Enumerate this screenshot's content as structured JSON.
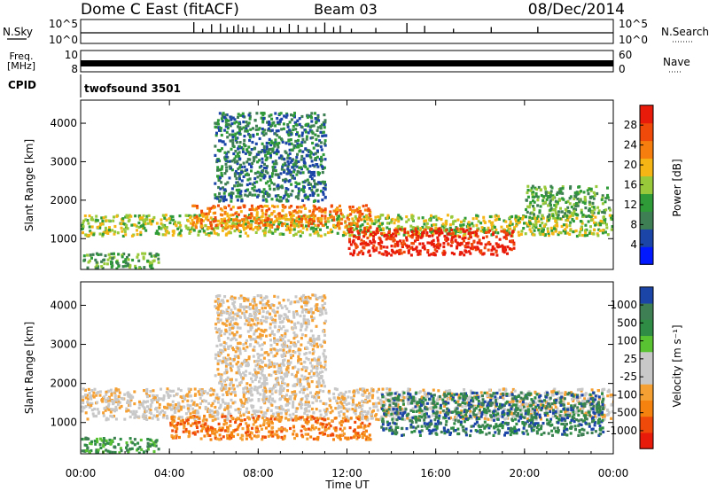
{
  "header": {
    "station": "Dome C East (fitACF)",
    "beam": "Beam 03",
    "date": "08/Dec/2014"
  },
  "nsky": {
    "label": "N.Sky",
    "ticks": [
      "10^5",
      "10^0"
    ],
    "right_label": "N.Search",
    "right_ticks": [
      "10^5",
      "10^0"
    ],
    "spike_times_h": [
      5.1,
      5.5,
      5.9,
      6.3,
      6.6,
      6.9,
      7.1,
      7.3,
      7.5,
      7.8,
      8.4,
      8.7,
      9.0,
      9.4,
      9.8,
      10.2,
      10.6,
      11.0,
      11.4,
      11.7,
      12.2,
      13.3,
      14.7,
      15.5,
      16.8,
      18.5,
      20.6
    ]
  },
  "freq": {
    "label_line1": "Freq.",
    "label_line2": "[MHz]",
    "ticks": [
      "10",
      "8"
    ],
    "right_label": "Nave",
    "right_ticks": [
      "60",
      "0"
    ]
  },
  "cpid": {
    "label": "CPID",
    "value": "twofsound 3501"
  },
  "chart_data": [
    {
      "type": "heatmap",
      "quantity": "Power",
      "ylabel": "Slant Range [km]",
      "ylim": [
        200,
        4600
      ],
      "yticks": [
        "1000",
        "2000",
        "3000",
        "4000"
      ],
      "xlim": [
        0,
        24
      ],
      "colorbar_label": "Power [dB]",
      "colorbar_ticks": [
        "28",
        "24",
        "20",
        "16",
        "12",
        "8",
        "4"
      ],
      "colors": [
        "#0019ff",
        "#1c45a8",
        "#3f7f54",
        "#2e9a38",
        "#98c93a",
        "#f5b615",
        "#f57e0f",
        "#f04a0a",
        "#e81b0b"
      ],
      "bands": [
        {
          "t0": 0.0,
          "t1": 24.0,
          "r0": 1100,
          "r1": 1650,
          "level": 4
        },
        {
          "t0": 0.0,
          "t1": 3.5,
          "r0": 250,
          "r1": 650,
          "level": 3
        },
        {
          "t0": 5.0,
          "t1": 13.0,
          "r0": 1300,
          "r1": 1900,
          "level": 6
        },
        {
          "t0": 12.0,
          "t1": 19.5,
          "r0": 600,
          "r1": 1300,
          "level": 8
        },
        {
          "t0": 20.0,
          "t1": 23.8,
          "r0": 1600,
          "r1": 2400,
          "level": 3
        },
        {
          "t0": 6.0,
          "t1": 11.0,
          "r0": 2000,
          "r1": 4300,
          "level": 2
        }
      ]
    },
    {
      "type": "heatmap",
      "quantity": "Velocity",
      "ylabel": "Slant Range [km]",
      "ylim": [
        200,
        4600
      ],
      "yticks": [
        "1000",
        "2000",
        "3000",
        "4000"
      ],
      "xlim": [
        0,
        24
      ],
      "xticks": [
        "00:00",
        "04:00",
        "08:00",
        "12:00",
        "16:00",
        "20:00",
        "00:00"
      ],
      "xlabel": "Time UT",
      "colorbar_label": "Velocity [m s⁻¹]",
      "colorbar_ticks": [
        "1000",
        "500",
        "100",
        "25",
        "-25",
        "-100",
        "-500",
        "-1000"
      ],
      "colors": [
        "#e81b0b",
        "#f04a0a",
        "#f5820f",
        "#f5a032",
        "#c8c8c8",
        "#c8c8c8",
        "#58c232",
        "#2e8c44",
        "#3f7f54",
        "#1c45a8"
      ],
      "bands": [
        {
          "t0": 0.0,
          "t1": 24.0,
          "r0": 1100,
          "r1": 1900,
          "level": 4
        },
        {
          "t0": 0.0,
          "t1": 3.5,
          "r0": 250,
          "r1": 650,
          "level": 7
        },
        {
          "t0": 4.0,
          "t1": 13.0,
          "r0": 600,
          "r1": 1200,
          "level": 2
        },
        {
          "t0": 13.5,
          "t1": 23.5,
          "r0": 700,
          "r1": 1800,
          "level": 8
        },
        {
          "t0": 6.0,
          "t1": 11.0,
          "r0": 1900,
          "r1": 4300,
          "level": 4
        }
      ]
    }
  ]
}
